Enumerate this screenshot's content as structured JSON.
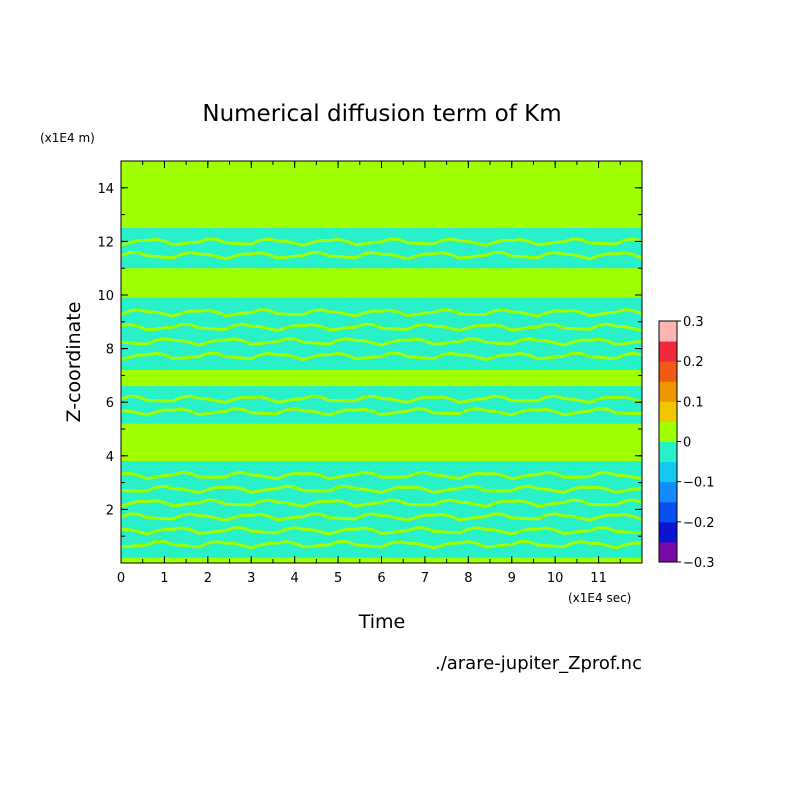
{
  "chart_data": {
    "type": "heatmap",
    "title": "Numerical diffusion term of Km",
    "xlabel": "Time",
    "ylabel": "Z-coordinate",
    "x_unit": "(x1E4 sec)",
    "y_unit": "(x1E4 m)",
    "xlim": [
      0,
      12
    ],
    "ylim": [
      0,
      15
    ],
    "x_ticks": [
      "0",
      "1",
      "2",
      "3",
      "4",
      "5",
      "6",
      "7",
      "8",
      "9",
      "10",
      "11"
    ],
    "y_ticks": [
      "2",
      "4",
      "6",
      "8",
      "10",
      "12",
      "14"
    ],
    "source": "./arare-jupiter_Zprof.nc",
    "colorbar": {
      "tick_labels": [
        "0.3",
        "0.2",
        "0.1",
        "0",
        "−0.1",
        "−0.2",
        "−0.3"
      ],
      "levels": [
        -0.3,
        -0.25,
        -0.2,
        -0.15,
        -0.1,
        -0.05,
        0,
        0.05,
        0.1,
        0.15,
        0.2,
        0.25,
        0.3
      ],
      "colors": [
        "#7a0aa8",
        "#0a14d2",
        "#0a50f0",
        "#148cff",
        "#14c8f0",
        "#28f0c8",
        "#a0ff00",
        "#f0c800",
        "#f09600",
        "#f05a14",
        "#f0283c",
        "#ffb4b4"
      ]
    },
    "background_value_color": "#a0ff00",
    "negative_band_color": "#28f0c8",
    "bands": [
      {
        "z_range": [
          11.0,
          12.5
        ],
        "t_range": [
          0,
          12
        ],
        "value": -0.03
      },
      {
        "z_range": [
          7.2,
          9.9
        ],
        "t_range": [
          0,
          12
        ],
        "value": -0.03
      },
      {
        "z_range": [
          5.2,
          6.6
        ],
        "t_range": [
          0,
          12
        ],
        "value": -0.03
      },
      {
        "z_range": [
          0.2,
          3.8
        ],
        "t_range": [
          0,
          12
        ],
        "value": -0.03
      }
    ]
  }
}
